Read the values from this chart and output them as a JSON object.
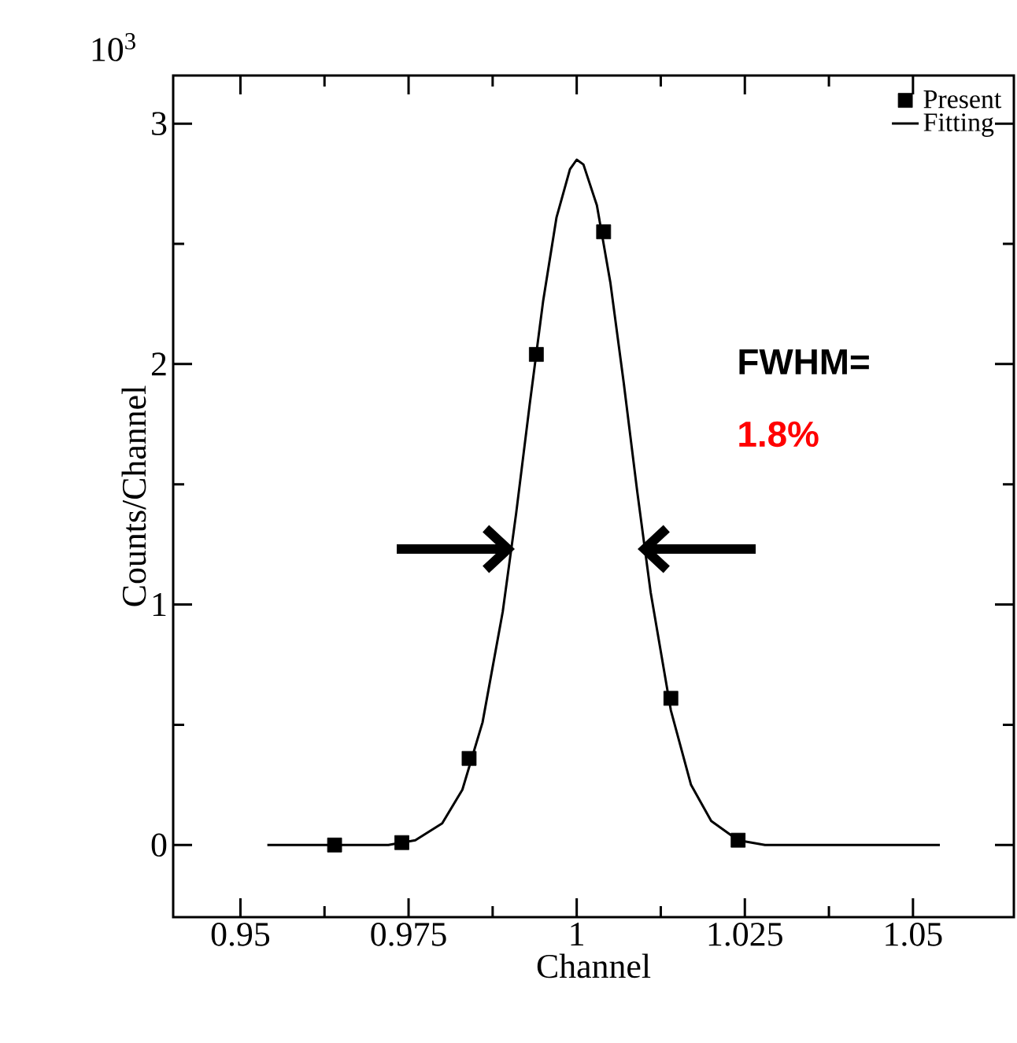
{
  "chart_data": {
    "type": "scatter",
    "xlabel": "Channel",
    "ylabel": "Counts/Channel",
    "xlim": [
      0.94,
      1.065
    ],
    "ylim": [
      -0.3,
      3.2
    ],
    "xticks": [
      0.95,
      0.975,
      1,
      1.025,
      1.05
    ],
    "yticks": [
      0,
      1,
      2,
      3
    ],
    "legend": "top right",
    "series": [
      {
        "name": "Present",
        "marker": "square",
        "color": "#000000",
        "x": [
          0.964,
          0.974,
          0.984,
          0.994,
          1.004,
          1.014,
          1.024
        ],
        "values": [
          0,
          0.01,
          0.36,
          2.04,
          2.55,
          0.61,
          0.02
        ]
      },
      {
        "name": "Fitting",
        "type": "line",
        "marker": "none",
        "color": "#000000",
        "x": [
          0.954,
          0.966,
          0.972,
          0.976,
          0.98,
          0.983,
          0.986,
          0.989,
          0.991,
          0.993,
          0.995,
          0.997,
          0.999,
          1.0,
          1.001,
          1.003,
          1.005,
          1.007,
          1.009,
          1.011,
          1.014,
          1.017,
          1.02,
          1.024,
          1.028,
          1.034,
          1.054
        ],
        "values": [
          0,
          0,
          0,
          0.02,
          0.09,
          0.23,
          0.51,
          0.97,
          1.38,
          1.83,
          2.26,
          2.61,
          2.81,
          2.85,
          2.83,
          2.66,
          2.34,
          1.92,
          1.47,
          1.05,
          0.56,
          0.25,
          0.1,
          0.02,
          0,
          0,
          0
        ]
      }
    ],
    "annotations": [
      "10$^{3}$",
      "FWHM=",
      "1.8%"
    ]
  }
}
